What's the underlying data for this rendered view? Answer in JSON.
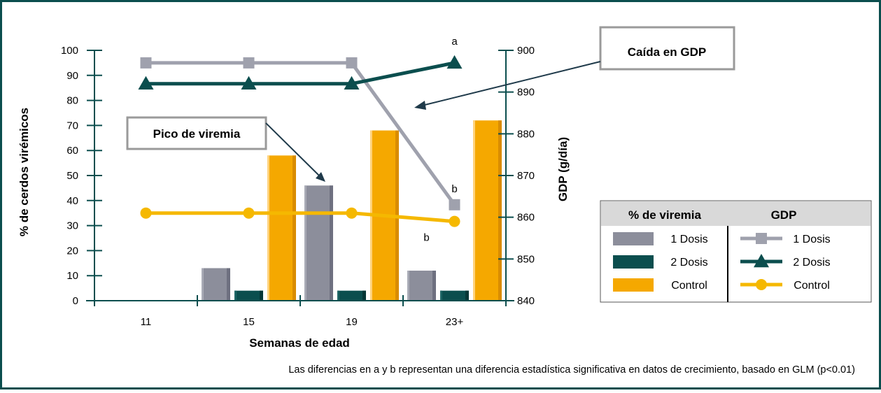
{
  "chart_data": {
    "type": "bar+line",
    "categories": [
      "11",
      "15",
      "19",
      "23+"
    ],
    "xlabel": "Semanas de edad",
    "ylabel_left": "% de cerdos virémicos",
    "ylabel_right": "GDP (g/día)",
    "ylim_left": [
      0,
      100
    ],
    "yticks_left": [
      "0",
      "10",
      "20",
      "30",
      "40",
      "50",
      "60",
      "70",
      "80",
      "90",
      "100"
    ],
    "ylim_right": [
      840,
      900
    ],
    "yticks_right": [
      "840",
      "850",
      "860",
      "870",
      "880",
      "890",
      "900"
    ],
    "bar_series": [
      {
        "name": "1 Dosis",
        "color": "#8c8e9b",
        "values": [
          0,
          13,
          46,
          12
        ]
      },
      {
        "name": "2 Dosis",
        "color": "#0b4e4e",
        "values": [
          0,
          4,
          4,
          4
        ]
      },
      {
        "name": "Control",
        "color": "#f5a800",
        "values": [
          0,
          58,
          68,
          72
        ]
      }
    ],
    "line_series": [
      {
        "name": "1 Dosis",
        "color": "#9fa1ad",
        "marker": "square",
        "values": [
          897,
          897,
          897,
          863
        ]
      },
      {
        "name": "2 Dosis",
        "color": "#0b4e4e",
        "marker": "triangle",
        "values": [
          892,
          892,
          892,
          897
        ]
      },
      {
        "name": "Control",
        "color": "#f5b800",
        "marker": "circle",
        "values": [
          861,
          861,
          861,
          859
        ]
      }
    ],
    "point_labels": [
      {
        "text": "a",
        "series": "2 Dosis",
        "category": "23+"
      },
      {
        "text": "b",
        "series": "1 Dosis",
        "category": "23+"
      },
      {
        "text": "b",
        "series": "Control",
        "category": "23+"
      }
    ],
    "callouts": {
      "gdp_drop": "Caída en GDP",
      "viremia_peak": "Pico de viremia"
    },
    "legend": {
      "header_bars": "% de viremia",
      "header_lines": "GDP",
      "placement": "right"
    },
    "footnote": "Las diferencias en a y b representan una diferencia estadística significativa en datos de crecimiento, basado en GLM (p<0.01)"
  },
  "colors": {
    "frame": "#0b4e4e",
    "axis": "#0b4e4e",
    "callout_border": "#9a9a9a",
    "legend_header_bg": "#d9d9d9"
  }
}
